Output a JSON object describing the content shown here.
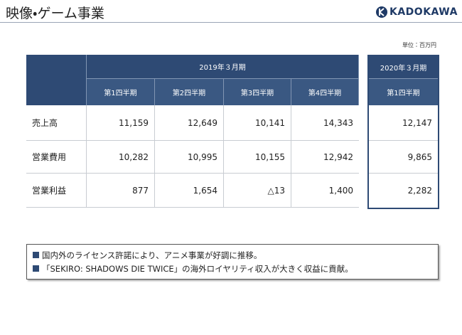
{
  "header": {
    "title": "映像・ゲーム事業",
    "logo": "KADOKAWA"
  },
  "unit": "単位：百万円",
  "table": {
    "period_2019": "2019年３月期",
    "period_2020": "2020年３月期",
    "columns": [
      "第1四半期",
      "第2四半期",
      "第3四半期",
      "第4四半期"
    ],
    "columns_2020": [
      "第1四半期"
    ],
    "rows": [
      {
        "label": "売上高",
        "values": [
          "11,159",
          "12,649",
          "10,141",
          "14,343"
        ],
        "values_2020": [
          "12,147"
        ]
      },
      {
        "label": "営業費用",
        "values": [
          "10,282",
          "10,995",
          "10,155",
          "12,942"
        ],
        "values_2020": [
          "9,865"
        ]
      },
      {
        "label": "営業利益",
        "values": [
          "877",
          "1,654",
          "△13",
          "1,400"
        ],
        "values_2020": [
          "2,282"
        ]
      }
    ]
  },
  "notes": [
    "国内外のライセンス許諾により、アニメ事業が好調に推移。",
    "「SEKIRO: SHADOWS DIE TWICE」の海外ロイヤリティ収入が大きく収益に貢献。"
  ]
}
